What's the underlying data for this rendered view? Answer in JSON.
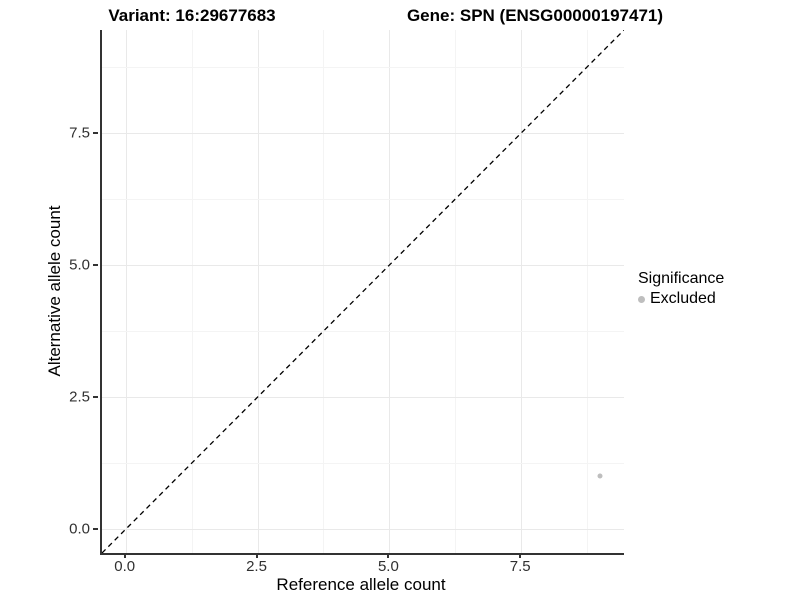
{
  "titles": {
    "variant": "Variant: 16:29677683",
    "gene": "Gene: SPN (ENSG00000197471)"
  },
  "chart_data": {
    "type": "scatter",
    "title_left": "Variant: 16:29677683",
    "title_right": "Gene: SPN (ENSG00000197471)",
    "xlabel": "Reference allele count",
    "ylabel": "Alternative allele count",
    "xlim": [
      -0.45,
      9.45
    ],
    "ylim": [
      -0.45,
      9.45
    ],
    "x_ticks": [
      "0.0",
      "2.5",
      "5.0",
      "7.5"
    ],
    "y_ticks": [
      "0.0",
      "2.5",
      "5.0",
      "7.5"
    ],
    "x_tick_values": [
      0.0,
      2.5,
      5.0,
      7.5
    ],
    "y_tick_values": [
      0.0,
      2.5,
      5.0,
      7.5
    ],
    "grid": {
      "major": true,
      "minor": true,
      "minor_values": [
        1.25,
        3.75,
        6.25,
        8.75
      ]
    },
    "reference_line": {
      "type": "identity y=x",
      "style": "dashed",
      "color": "#000000"
    },
    "series": [
      {
        "name": "Excluded",
        "color": "#bebebe",
        "points": [
          {
            "x": 9,
            "y": 1
          }
        ]
      }
    ],
    "legend": {
      "title": "Significance",
      "position": "right",
      "items": [
        {
          "label": "Excluded",
          "color": "#bebebe"
        }
      ]
    }
  },
  "colors": {
    "background": "#ffffff",
    "axis_line": "#333333",
    "grid_major": "#e9e9e9",
    "grid_minor": "#f4f4f4",
    "point": "#bebebe",
    "dashed_line": "#000000"
  }
}
